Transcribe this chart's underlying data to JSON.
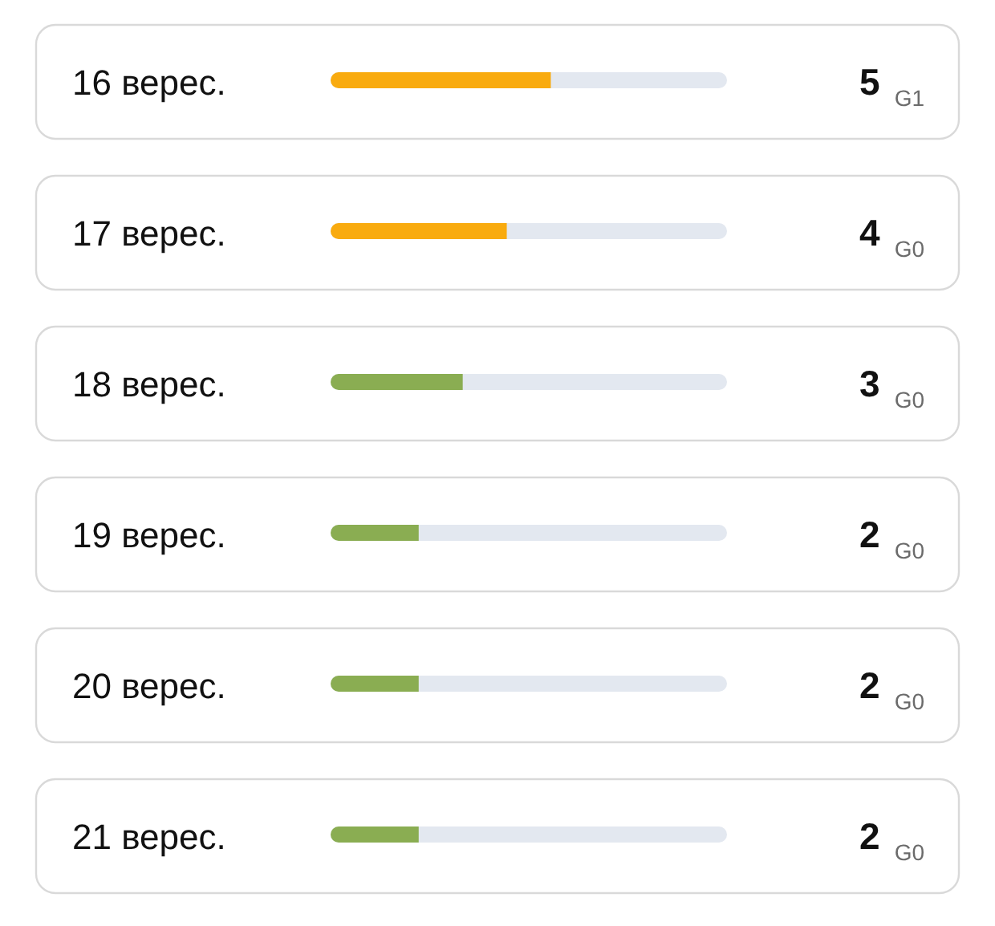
{
  "chart_data": {
    "type": "bar",
    "orientation": "horizontal",
    "categories": [
      "16 верес.",
      "17 верес.",
      "18 верес.",
      "19 верес.",
      "20 верес.",
      "21 верес."
    ],
    "values": [
      5,
      4,
      3,
      2,
      2,
      2
    ],
    "colors": [
      "#f9ab0f",
      "#f9ab0f",
      "#8aad52",
      "#8aad52",
      "#8aad52",
      "#8aad52"
    ],
    "xlim": [
      0,
      9
    ],
    "value_labels": [
      "5 $_{G1}$",
      "4 $_{G0}$",
      "3 $_{G0}$",
      "2 $_{G0}$",
      "2 $_{G0}$",
      "2 $_{G0}$"
    ],
    "tick_labels": "y"
  }
}
